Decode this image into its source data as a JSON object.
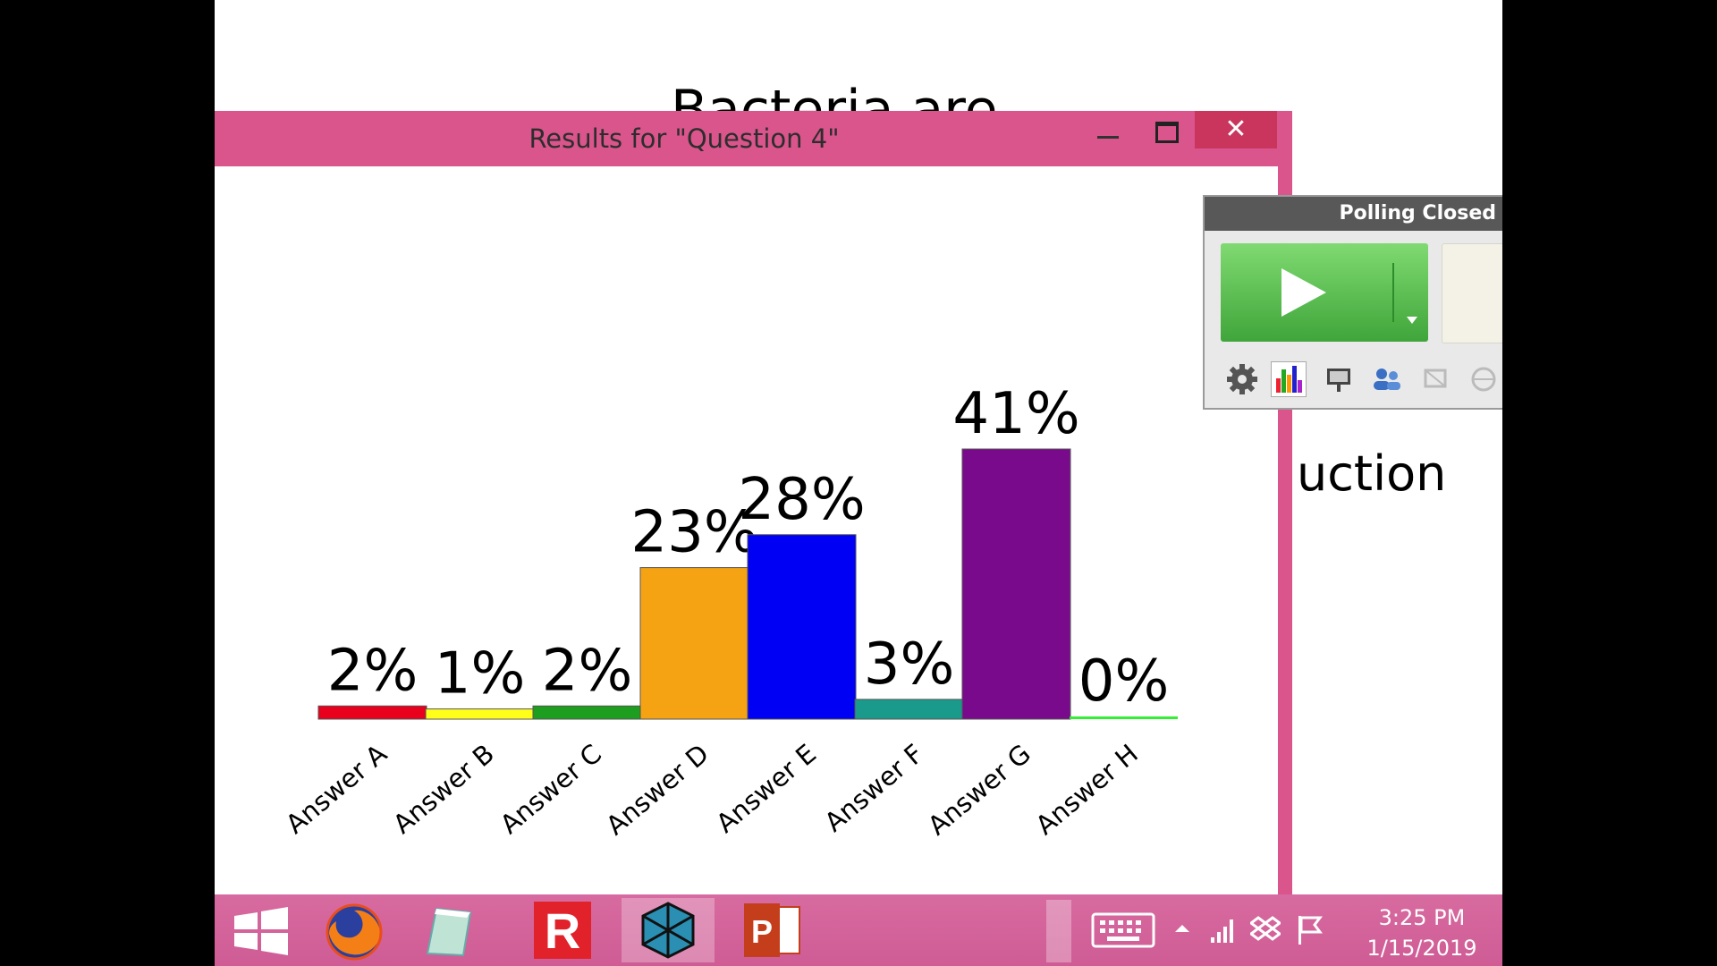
{
  "slide": {
    "title_partial": "Bacteria are",
    "text_fragment": "uction"
  },
  "results_window": {
    "title": "Results for \"Question 4\"",
    "close_glyph": "✕"
  },
  "polling_panel": {
    "status": "Polling Closed",
    "tools": [
      "settings-icon",
      "chart-icon",
      "presenter-icon",
      "participants-icon",
      "screen-icon",
      "globe-icon"
    ]
  },
  "chart_data": {
    "type": "bar",
    "categories": [
      "Answer A",
      "Answer B",
      "Answer C",
      "Answer D",
      "Answer E",
      "Answer F",
      "Answer G",
      "Answer H"
    ],
    "values": [
      2,
      1,
      2,
      23,
      28,
      3,
      41,
      0
    ],
    "labels": [
      "2%",
      "1%",
      "2%",
      "23%",
      "28%",
      "3%",
      "41%",
      "0%"
    ],
    "colors": [
      "#e8001c",
      "#ffff1a",
      "#1e9e1e",
      "#f5a313",
      "#0000f5",
      "#1a9a8a",
      "#7a0a8c",
      "#33ee33"
    ],
    "ylim": [
      0,
      41
    ]
  },
  "taskbar": {
    "apps": [
      "windows-start-icon",
      "firefox-icon",
      "notebook-icon",
      "r-app-icon",
      "3d-app-icon",
      "powerpoint-icon"
    ],
    "clock_time": "3:25 PM",
    "clock_date": "1/15/2019"
  }
}
